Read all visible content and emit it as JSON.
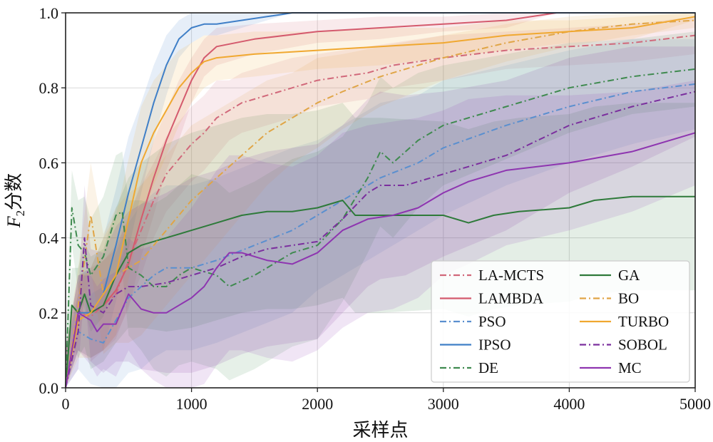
{
  "chart_data": {
    "type": "line",
    "title": "",
    "xlabel": "采样点",
    "ylabel_main": "F",
    "ylabel_sub": "2",
    "ylabel_suffix": "分数",
    "xlim": [
      0,
      5000
    ],
    "ylim": [
      0.0,
      1.0
    ],
    "xticks": [
      0,
      1000,
      2000,
      3000,
      4000,
      5000
    ],
    "yticks": [
      0.0,
      0.2,
      0.4,
      0.6,
      0.8,
      1.0
    ],
    "xtick_labels": [
      "0",
      "1000",
      "2000",
      "3000",
      "4000",
      "5000"
    ],
    "ytick_labels": [
      "0.0",
      "0.2",
      "0.4",
      "0.6",
      "0.8",
      "1.0"
    ],
    "grid": true,
    "legend_position": "bottom-right",
    "legend_columns": 2,
    "series": [
      {
        "name": "LA-MCTS",
        "color": "#d1687a",
        "dash": "dashdot",
        "x": [
          0,
          100,
          200,
          300,
          400,
          500,
          600,
          700,
          800,
          900,
          1000,
          1100,
          1200,
          1300,
          1400,
          1500,
          1600,
          1700,
          1800,
          2000,
          2200,
          2400,
          2600,
          2800,
          3000,
          3500,
          4000,
          4500,
          5000
        ],
        "y": [
          0.0,
          0.2,
          0.19,
          0.22,
          0.25,
          0.34,
          0.42,
          0.5,
          0.57,
          0.61,
          0.65,
          0.68,
          0.72,
          0.74,
          0.76,
          0.77,
          0.78,
          0.79,
          0.8,
          0.82,
          0.83,
          0.84,
          0.86,
          0.87,
          0.88,
          0.9,
          0.91,
          0.92,
          0.94
        ],
        "band": [
          0.1,
          0.1,
          0.12,
          0.12,
          0.12,
          0.12,
          0.12,
          0.1,
          0.1,
          0.1,
          0.1,
          0.1,
          0.1,
          0.08,
          0.08,
          0.08,
          0.08,
          0.08,
          0.08,
          0.07,
          0.07,
          0.07,
          0.06,
          0.06,
          0.06,
          0.05,
          0.05,
          0.05,
          0.05
        ]
      },
      {
        "name": "LAMBDA",
        "color": "#d45a6d",
        "dash": "solid",
        "x": [
          0,
          100,
          200,
          300,
          400,
          500,
          600,
          700,
          800,
          900,
          1000,
          1100,
          1200,
          1500,
          2000,
          2500,
          3000,
          3500,
          3900,
          4500,
          5000
        ],
        "y": [
          0.0,
          0.2,
          0.2,
          0.22,
          0.26,
          0.33,
          0.45,
          0.56,
          0.66,
          0.74,
          0.82,
          0.88,
          0.91,
          0.93,
          0.95,
          0.96,
          0.97,
          0.98,
          1.0,
          1.0,
          1.0
        ],
        "band": [
          0.1,
          0.1,
          0.12,
          0.12,
          0.12,
          0.12,
          0.1,
          0.1,
          0.08,
          0.08,
          0.06,
          0.05,
          0.05,
          0.04,
          0.03,
          0.03,
          0.02,
          0.02,
          0.0,
          0.0,
          0.0
        ]
      },
      {
        "name": "PSO",
        "color": "#5a8fcf",
        "dash": "dashdot",
        "x": [
          0,
          100,
          200,
          300,
          400,
          500,
          600,
          700,
          800,
          1000,
          1200,
          1500,
          1800,
          2000,
          2200,
          2500,
          2800,
          3000,
          3500,
          4000,
          4500,
          5000
        ],
        "y": [
          0.0,
          0.15,
          0.13,
          0.12,
          0.18,
          0.24,
          0.27,
          0.3,
          0.32,
          0.32,
          0.34,
          0.38,
          0.42,
          0.46,
          0.5,
          0.56,
          0.6,
          0.64,
          0.7,
          0.75,
          0.79,
          0.81
        ],
        "band": [
          0.1,
          0.1,
          0.12,
          0.15,
          0.18,
          0.2,
          0.22,
          0.22,
          0.22,
          0.22,
          0.22,
          0.22,
          0.22,
          0.2,
          0.2,
          0.2,
          0.18,
          0.18,
          0.16,
          0.15,
          0.14,
          0.12
        ]
      },
      {
        "name": "IPSO",
        "color": "#3f7fc7",
        "dash": "solid",
        "x": [
          0,
          100,
          200,
          300,
          400,
          500,
          600,
          700,
          800,
          900,
          1000,
          1100,
          1200,
          1400,
          1600,
          1800,
          2000,
          3000,
          4000,
          5000
        ],
        "y": [
          0.0,
          0.2,
          0.2,
          0.25,
          0.38,
          0.52,
          0.64,
          0.76,
          0.86,
          0.93,
          0.96,
          0.97,
          0.97,
          0.98,
          0.99,
          1.0,
          1.0,
          1.0,
          1.0,
          1.0
        ],
        "band": [
          0.1,
          0.1,
          0.12,
          0.15,
          0.15,
          0.15,
          0.12,
          0.1,
          0.08,
          0.05,
          0.04,
          0.03,
          0.03,
          0.02,
          0.01,
          0.0,
          0.0,
          0.0,
          0.0,
          0.0
        ]
      },
      {
        "name": "DE",
        "color": "#3f8a4f",
        "dash": "dashdot",
        "x": [
          0,
          50,
          100,
          150,
          200,
          300,
          400,
          450,
          500,
          600,
          700,
          800,
          900,
          1000,
          1200,
          1300,
          1500,
          1800,
          2000,
          2200,
          2400,
          2500,
          2600,
          2800,
          3000,
          3500,
          4000,
          4500,
          5000
        ],
        "y": [
          0.0,
          0.48,
          0.38,
          0.36,
          0.3,
          0.35,
          0.46,
          0.47,
          0.32,
          0.3,
          0.27,
          0.27,
          0.3,
          0.32,
          0.3,
          0.27,
          0.3,
          0.36,
          0.38,
          0.45,
          0.56,
          0.63,
          0.6,
          0.66,
          0.7,
          0.75,
          0.8,
          0.83,
          0.85
        ],
        "band": [
          0.1,
          0.1,
          0.12,
          0.15,
          0.15,
          0.16,
          0.16,
          0.16,
          0.18,
          0.2,
          0.22,
          0.24,
          0.24,
          0.25,
          0.25,
          0.25,
          0.25,
          0.25,
          0.25,
          0.22,
          0.2,
          0.2,
          0.2,
          0.18,
          0.16,
          0.14,
          0.12,
          0.1,
          0.1
        ]
      },
      {
        "name": "GA",
        "color": "#2e7a3a",
        "dash": "solid",
        "x": [
          0,
          50,
          100,
          150,
          200,
          300,
          400,
          500,
          600,
          800,
          1000,
          1200,
          1400,
          1600,
          1800,
          2000,
          2200,
          2300,
          2500,
          3000,
          3200,
          3400,
          3600,
          4000,
          4200,
          4500,
          5000
        ],
        "y": [
          0.0,
          0.22,
          0.2,
          0.25,
          0.2,
          0.22,
          0.3,
          0.36,
          0.38,
          0.4,
          0.42,
          0.44,
          0.46,
          0.47,
          0.47,
          0.48,
          0.5,
          0.46,
          0.46,
          0.46,
          0.44,
          0.46,
          0.47,
          0.48,
          0.5,
          0.51,
          0.51
        ],
        "band": [
          0.1,
          0.1,
          0.12,
          0.14,
          0.15,
          0.15,
          0.18,
          0.2,
          0.22,
          0.25,
          0.26,
          0.26,
          0.26,
          0.26,
          0.26,
          0.26,
          0.26,
          0.26,
          0.26,
          0.25,
          0.25,
          0.25,
          0.25,
          0.25,
          0.25,
          0.25,
          0.25
        ]
      },
      {
        "name": "BO",
        "color": "#e0a546",
        "dash": "dashdot",
        "x": [
          0,
          100,
          200,
          300,
          400,
          500,
          600,
          700,
          800,
          900,
          1000,
          1200,
          1400,
          1600,
          1800,
          2000,
          2200,
          2500,
          3000,
          3500,
          4000,
          4500,
          5000
        ],
        "y": [
          0.0,
          0.22,
          0.46,
          0.25,
          0.3,
          0.32,
          0.34,
          0.38,
          0.42,
          0.46,
          0.5,
          0.56,
          0.62,
          0.68,
          0.72,
          0.76,
          0.79,
          0.83,
          0.88,
          0.92,
          0.95,
          0.97,
          0.98
        ],
        "band": [
          0.1,
          0.1,
          0.14,
          0.16,
          0.18,
          0.2,
          0.2,
          0.2,
          0.2,
          0.2,
          0.2,
          0.18,
          0.16,
          0.14,
          0.12,
          0.12,
          0.1,
          0.08,
          0.06,
          0.05,
          0.04,
          0.03,
          0.02
        ]
      },
      {
        "name": "TURBO",
        "color": "#f0a830",
        "dash": "solid",
        "x": [
          0,
          100,
          200,
          300,
          400,
          500,
          600,
          700,
          800,
          900,
          1000,
          1100,
          1200,
          1500,
          2000,
          2500,
          3000,
          3500,
          4000,
          4500,
          5000
        ],
        "y": [
          0.0,
          0.18,
          0.2,
          0.25,
          0.3,
          0.45,
          0.6,
          0.68,
          0.74,
          0.8,
          0.84,
          0.87,
          0.88,
          0.89,
          0.9,
          0.91,
          0.92,
          0.94,
          0.95,
          0.96,
          0.99
        ],
        "band": [
          0.1,
          0.1,
          0.12,
          0.15,
          0.16,
          0.16,
          0.15,
          0.14,
          0.12,
          0.1,
          0.08,
          0.07,
          0.06,
          0.06,
          0.05,
          0.05,
          0.04,
          0.04,
          0.03,
          0.03,
          0.01
        ]
      },
      {
        "name": "SOBOL",
        "color": "#7b2f9e",
        "dash": "dashdot",
        "x": [
          0,
          100,
          150,
          200,
          300,
          400,
          500,
          600,
          800,
          1000,
          1200,
          1400,
          1600,
          2000,
          2200,
          2400,
          2500,
          2700,
          3000,
          3500,
          4000,
          4500,
          5000
        ],
        "y": [
          0.0,
          0.15,
          0.4,
          0.22,
          0.2,
          0.25,
          0.27,
          0.27,
          0.28,
          0.3,
          0.32,
          0.35,
          0.37,
          0.39,
          0.45,
          0.52,
          0.54,
          0.54,
          0.57,
          0.62,
          0.7,
          0.75,
          0.79
        ],
        "band": [
          0.1,
          0.1,
          0.14,
          0.15,
          0.16,
          0.18,
          0.2,
          0.22,
          0.24,
          0.26,
          0.26,
          0.26,
          0.26,
          0.26,
          0.25,
          0.25,
          0.25,
          0.24,
          0.22,
          0.2,
          0.18,
          0.16,
          0.12
        ]
      },
      {
        "name": "MC",
        "color": "#8e35b0",
        "dash": "solid",
        "x": [
          0,
          100,
          200,
          250,
          300,
          400,
          500,
          600,
          700,
          800,
          900,
          1000,
          1100,
          1200,
          1300,
          1400,
          1600,
          1800,
          2000,
          2200,
          2400,
          2600,
          2800,
          3000,
          3200,
          3500,
          4000,
          4500,
          5000
        ],
        "y": [
          0.0,
          0.2,
          0.18,
          0.15,
          0.17,
          0.17,
          0.25,
          0.21,
          0.2,
          0.2,
          0.22,
          0.24,
          0.27,
          0.32,
          0.36,
          0.36,
          0.34,
          0.33,
          0.36,
          0.42,
          0.45,
          0.46,
          0.48,
          0.52,
          0.55,
          0.58,
          0.6,
          0.63,
          0.68
        ],
        "band": [
          0.1,
          0.1,
          0.12,
          0.12,
          0.12,
          0.14,
          0.15,
          0.16,
          0.18,
          0.2,
          0.22,
          0.24,
          0.26,
          0.26,
          0.26,
          0.26,
          0.26,
          0.26,
          0.26,
          0.26,
          0.25,
          0.25,
          0.24,
          0.22,
          0.22,
          0.2,
          0.18,
          0.16,
          0.14
        ]
      }
    ]
  }
}
